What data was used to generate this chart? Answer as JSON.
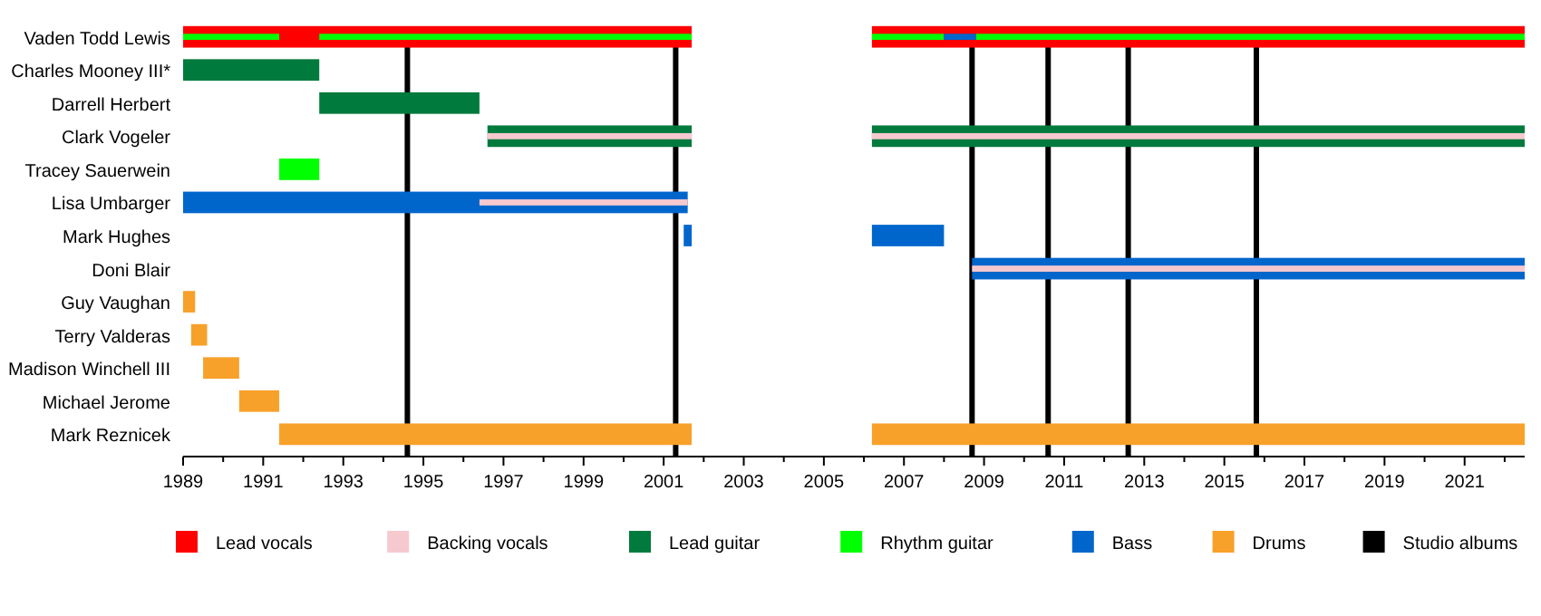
{
  "chart_data": {
    "type": "bar",
    "orientation": "horizontal",
    "categories": [
      "Vaden Todd Lewis",
      "Charles Mooney III*",
      "Darrell Herbert",
      "Clark Vogeler",
      "Tracey Sauerwein",
      "Lisa Umbarger",
      "Mark Hughes",
      "Doni Blair",
      "Guy Vaughan",
      "Terry Valderas",
      "Madison Winchell III",
      "Michael Jerome",
      "Mark Reznicek"
    ],
    "series": [
      {
        "name": "Lead vocals",
        "color": "#ff0000",
        "base": [
          1989,
          null,
          null,
          null,
          null,
          null,
          null,
          null,
          null,
          null,
          null,
          null,
          null
        ],
        "values": [
          12.7,
          null,
          null,
          null,
          null,
          null,
          null,
          null,
          null,
          null,
          null,
          null,
          null
        ]
      },
      {
        "name": "Backing vocals",
        "color": "#f6c9cf",
        "base": [
          null,
          null,
          null,
          null,
          null,
          1996.4,
          null,
          null,
          null,
          null,
          null,
          null,
          null
        ],
        "values": [
          null,
          null,
          null,
          null,
          null,
          5.2,
          null,
          null,
          null,
          null,
          null,
          null,
          null
        ]
      },
      {
        "name": "Lead guitar",
        "color": "#007a3d",
        "base": [
          null,
          1989,
          1992.4,
          1996.6,
          null,
          null,
          null,
          null,
          null,
          null,
          null,
          null,
          null
        ],
        "values": [
          null,
          3.4,
          4.0,
          5.1,
          null,
          null,
          null,
          null,
          null,
          null,
          null,
          null,
          null
        ]
      },
      {
        "name": "Rhythm guitar",
        "color": "#00ff00",
        "base": [
          1989,
          null,
          null,
          null,
          1991.4,
          null,
          null,
          null,
          null,
          null,
          null,
          null,
          null
        ],
        "values": [
          2.4,
          null,
          null,
          null,
          1.0,
          null,
          null,
          null,
          null,
          null,
          null,
          null,
          null
        ]
      },
      {
        "name": "Bass",
        "color": "#0066cc",
        "base": [
          null,
          null,
          null,
          null,
          null,
          1989,
          2001.5,
          2008.7,
          null,
          null,
          null,
          null,
          null
        ],
        "values": [
          null,
          null,
          null,
          null,
          null,
          12.6,
          0.2,
          13.8,
          null,
          null,
          null,
          null,
          null
        ]
      },
      {
        "name": "Drums",
        "color": "#f7a12a",
        "base": [
          null,
          null,
          null,
          null,
          null,
          null,
          null,
          null,
          1989,
          1989.2,
          1989.5,
          1990.4,
          1991.4
        ],
        "values": [
          null,
          null,
          null,
          null,
          null,
          null,
          null,
          null,
          0.3,
          0.4,
          0.9,
          1.0,
          10.3
        ]
      },
      {
        "color": "#ff0000",
        "base": [
          2006.2,
          null,
          null,
          null,
          null,
          null,
          null,
          null,
          null,
          null,
          null,
          null,
          null
        ],
        "values": [
          16.3,
          null,
          null,
          null,
          null,
          null,
          null,
          null,
          null,
          null,
          null,
          null,
          null
        ]
      },
      {
        "color": "#007a3d",
        "base": [
          null,
          null,
          null,
          2006.2,
          null,
          null,
          null,
          null,
          null,
          null,
          null,
          null,
          null
        ],
        "values": [
          null,
          null,
          null,
          16.3,
          null,
          null,
          null,
          null,
          null,
          null,
          null,
          null,
          null
        ]
      },
      {
        "color": "#0066cc",
        "base": [
          null,
          null,
          null,
          null,
          null,
          null,
          2006.2,
          null,
          null,
          null,
          null,
          null,
          null
        ],
        "values": [
          null,
          null,
          null,
          null,
          null,
          null,
          1.8,
          null,
          null,
          null,
          null,
          null,
          null
        ]
      },
      {
        "color": "#f7a12a",
        "base": [
          null,
          null,
          null,
          null,
          null,
          null,
          null,
          null,
          null,
          null,
          null,
          null,
          2006.2
        ],
        "values": [
          null,
          null,
          null,
          null,
          null,
          null,
          null,
          null,
          null,
          null,
          null,
          null,
          16.3
        ]
      },
      {
        "color": "#00ff00",
        "base": [
          1992.4,
          null,
          null,
          null,
          null,
          null,
          null,
          null,
          null,
          null,
          null,
          null,
          null
        ],
        "values": [
          9.3,
          null,
          null,
          null,
          null,
          null,
          null,
          null,
          null,
          null,
          null,
          null,
          null
        ]
      },
      {
        "color": "#00ff00",
        "base": [
          2006.2,
          null,
          null,
          null,
          null,
          null,
          null,
          null,
          null,
          null,
          null,
          null,
          null
        ],
        "values": [
          1.8,
          null,
          null,
          null,
          null,
          null,
          null,
          null,
          null,
          null,
          null,
          null,
          null
        ]
      },
      {
        "color": "#00ff00",
        "base": [
          2008.8,
          null,
          null,
          null,
          null,
          null,
          null,
          null,
          null,
          null,
          null,
          null,
          null
        ],
        "values": [
          13.7,
          null,
          null,
          null,
          null,
          null,
          null,
          null,
          null,
          null,
          null,
          null,
          null
        ]
      },
      {
        "color": "#0066cc",
        "base": [
          2008.0,
          null,
          null,
          null,
          null,
          null,
          null,
          null,
          null,
          null,
          null,
          null,
          null
        ],
        "values": [
          0.8,
          null,
          null,
          null,
          null,
          null,
          null,
          null,
          null,
          null,
          null,
          null,
          null
        ]
      },
      {
        "color": "#f6c9cf",
        "base": [
          null,
          null,
          null,
          1996.6,
          null,
          null,
          null,
          2008.7,
          null,
          null,
          null,
          null,
          null
        ],
        "values": [
          null,
          null,
          null,
          5.1,
          null,
          null,
          null,
          13.8,
          null,
          null,
          null,
          null,
          null
        ]
      },
      {
        "color": "#f6c9cf",
        "base": [
          null,
          null,
          null,
          2006.2,
          null,
          null,
          null,
          null,
          null,
          null,
          null,
          null,
          null
        ],
        "values": [
          null,
          null,
          null,
          16.3,
          null,
          null,
          null,
          null,
          null,
          null,
          null,
          null,
          null
        ]
      }
    ],
    "xlim": [
      1989,
      2022.5
    ],
    "xticks": [
      1989,
      {
        "value": 1990,
        "label": null
      },
      1991,
      {
        "value": 1992,
        "label": null
      },
      1993,
      {
        "value": 1994,
        "label": null
      },
      1995,
      {
        "value": 1996,
        "label": null
      },
      1997,
      {
        "value": 1998,
        "label": null
      },
      1999,
      {
        "value": 2000,
        "label": null
      },
      2001,
      {
        "value": 2002,
        "label": null
      },
      2003,
      {
        "value": 2004,
        "label": null
      },
      2005,
      {
        "value": 2006,
        "label": null
      },
      2007,
      {
        "value": 2008,
        "label": null
      },
      2009,
      {
        "value": 2010,
        "label": null
      },
      2011,
      {
        "value": 2012,
        "label": null
      },
      2013,
      {
        "value": 2014,
        "label": null
      },
      2015,
      {
        "value": 2016,
        "label": null
      },
      2017,
      {
        "value": 2018,
        "label": null
      },
      2019,
      {
        "value": 2020,
        "label": null
      },
      2021,
      {
        "value": 2022,
        "label": null
      }
    ],
    "ref_lines": [
      {
        "axis": "x",
        "value": 1994.6,
        "label": "Studio albums",
        "color": "#000000"
      },
      {
        "axis": "x",
        "value": 2001.3,
        "label": null,
        "color": "#000000"
      },
      {
        "axis": "x",
        "value": 2008.7,
        "label": null,
        "color": "#000000"
      },
      {
        "axis": "x",
        "value": 2010.6,
        "label": null,
        "color": "#000000"
      },
      {
        "axis": "x",
        "value": 2012.6,
        "label": null,
        "color": "#000000"
      },
      {
        "axis": "x",
        "value": 2015.8,
        "label": null,
        "color": "#000000"
      }
    ],
    "legend": "bottom"
  }
}
